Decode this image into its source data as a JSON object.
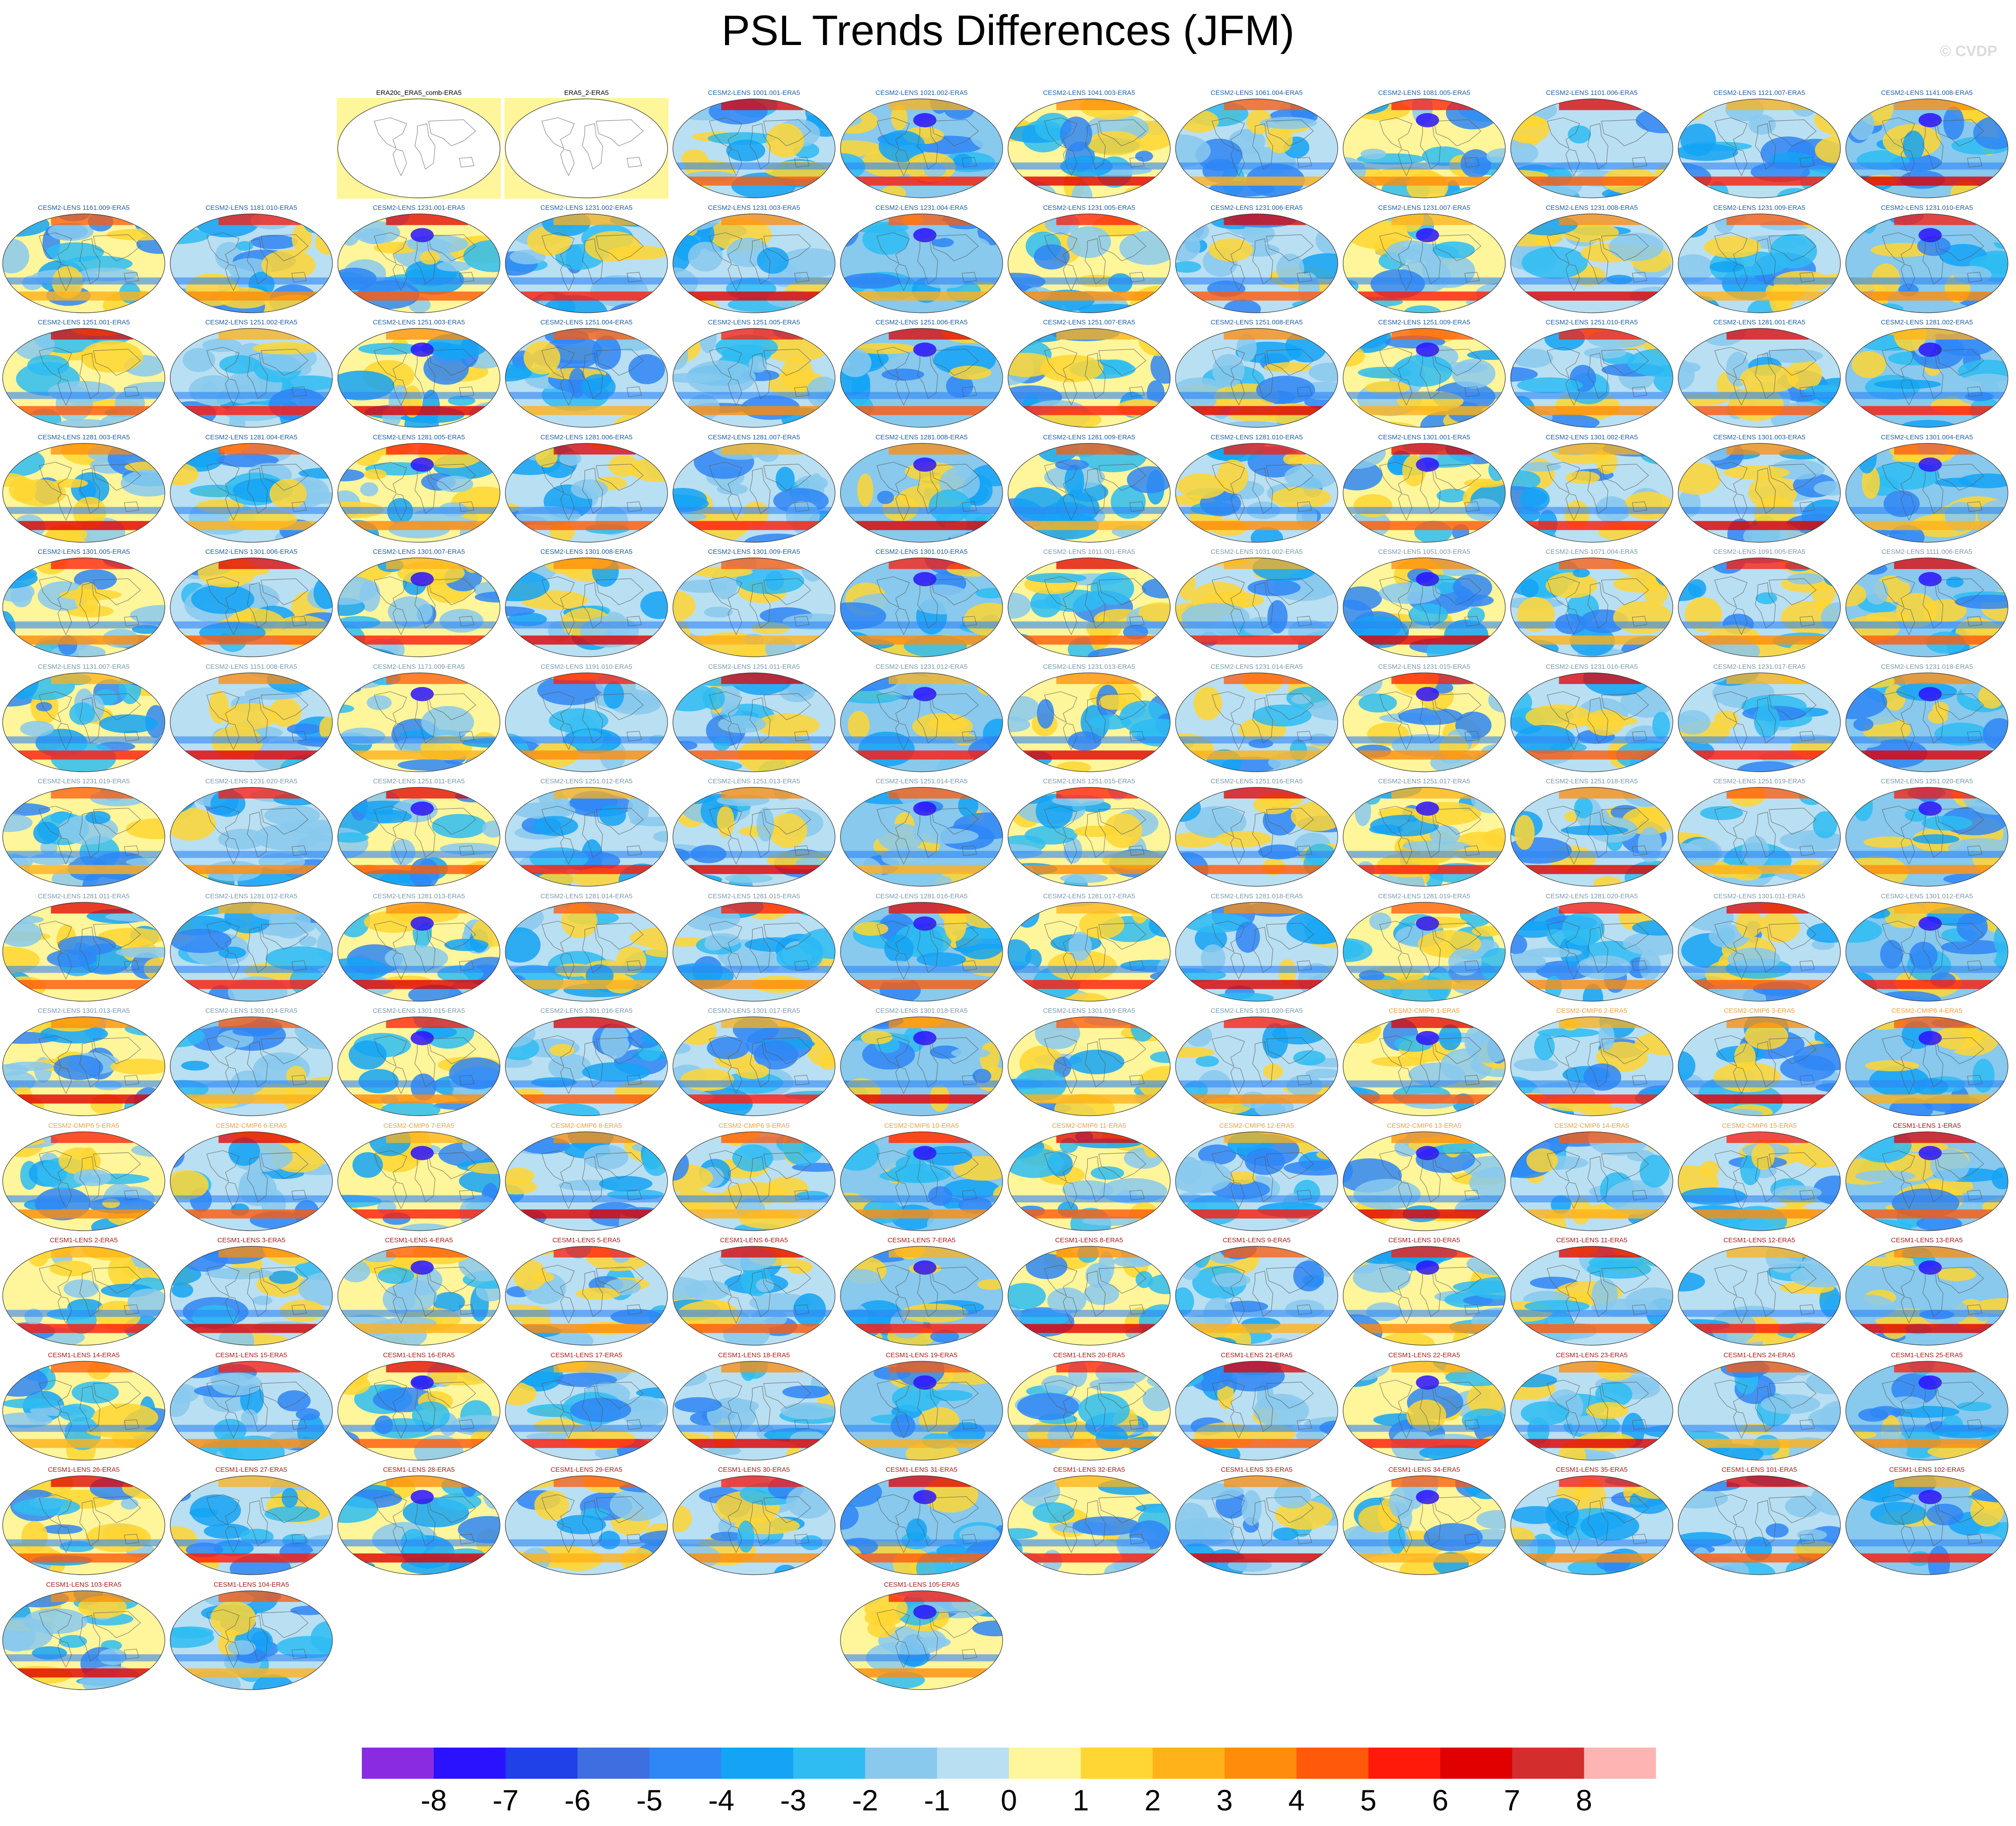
{
  "title": "PSL Trends Differences (JFM)",
  "watermark": "© CVDP",
  "colorbar": {
    "levels": [
      "-8",
      "-7",
      "-6",
      "-5",
      "-4",
      "-3",
      "-2",
      "-1",
      "0",
      "1",
      "2",
      "3",
      "4",
      "5",
      "6",
      "7",
      "8"
    ],
    "colors": [
      "#8a2be2",
      "#2b12ff",
      "#2040e8",
      "#3f6ee0",
      "#2f86f5",
      "#14a3f5",
      "#2ebcf2",
      "#88c9ed",
      "#b9dff2",
      "#fff59a",
      "#ffd633",
      "#ffb21a",
      "#ff8c0a",
      "#ff5a0a",
      "#ff1a0a",
      "#e00000",
      "#d32d2d",
      "#ffb4b4"
    ]
  },
  "panels": [
    {
      "label": "ERA20c_ERA5_comb-ERA5",
      "color": "#000000",
      "type": "blank"
    },
    {
      "label": "ERA5_2-ERA5",
      "color": "#000000",
      "type": "blank"
    },
    {
      "label": "CESM2-LENS 1001.001-ERA5",
      "color": "#1f5fa8"
    },
    {
      "label": "CESM2-LENS 1021.002-ERA5",
      "color": "#1f5fa8"
    },
    {
      "label": "CESM2-LENS 1041.003-ERA5",
      "color": "#1f5fa8"
    },
    {
      "label": "CESM2-LENS 1061.004-ERA5",
      "color": "#1f5fa8"
    },
    {
      "label": "CESM2-LENS 1081.005-ERA5",
      "color": "#1f5fa8"
    },
    {
      "label": "CESM2-LENS 1101.006-ERA5",
      "color": "#1f5fa8"
    },
    {
      "label": "CESM2-LENS 1121.007-ERA5",
      "color": "#1f5fa8"
    },
    {
      "label": "CESM2-LENS 1141.008-ERA5",
      "color": "#1f5fa8"
    },
    {
      "label": "CESM2-LENS 1161.009-ERA5",
      "color": "#1f5fa8"
    },
    {
      "label": "CESM2-LENS 1181.010-ERA5",
      "color": "#1f5fa8"
    },
    {
      "label": "CESM2-LENS 1231.001-ERA5",
      "color": "#1f5fa8"
    },
    {
      "label": "CESM2-LENS 1231.002-ERA5",
      "color": "#1f5fa8"
    },
    {
      "label": "CESM2-LENS 1231.003-ERA5",
      "color": "#1f5fa8"
    },
    {
      "label": "CESM2-LENS 1231.004-ERA5",
      "color": "#1f5fa8"
    },
    {
      "label": "CESM2-LENS 1231.005-ERA5",
      "color": "#1f5fa8"
    },
    {
      "label": "CESM2-LENS 1231.006-ERA5",
      "color": "#1f5fa8"
    },
    {
      "label": "CESM2-LENS 1231.007-ERA5",
      "color": "#1f5fa8"
    },
    {
      "label": "CESM2-LENS 1231.008-ERA5",
      "color": "#1f5fa8"
    },
    {
      "label": "CESM2-LENS 1231.009-ERA5",
      "color": "#1f5fa8"
    },
    {
      "label": "CESM2-LENS 1231.010-ERA5",
      "color": "#1f5fa8"
    },
    {
      "label": "CESM2-LENS 1251.001-ERA5",
      "color": "#1f5fa8"
    },
    {
      "label": "CESM2-LENS 1251.002-ERA5",
      "color": "#1f5fa8"
    },
    {
      "label": "CESM2-LENS 1251.003-ERA5",
      "color": "#1f5fa8"
    },
    {
      "label": "CESM2-LENS 1251.004-ERA5",
      "color": "#1f5fa8"
    },
    {
      "label": "CESM2-LENS 1251.005-ERA5",
      "color": "#1f5fa8"
    },
    {
      "label": "CESM2-LENS 1251.006-ERA5",
      "color": "#1f5fa8"
    },
    {
      "label": "CESM2-LENS 1251.007-ERA5",
      "color": "#1f5fa8"
    },
    {
      "label": "CESM2-LENS 1251.008-ERA5",
      "color": "#1f5fa8"
    },
    {
      "label": "CESM2-LENS 1251.009-ERA5",
      "color": "#1f5fa8"
    },
    {
      "label": "CESM2-LENS 1251.010-ERA5",
      "color": "#1f5fa8"
    },
    {
      "label": "CESM2-LENS 1281.001-ERA5",
      "color": "#1f5fa8"
    },
    {
      "label": "CESM2-LENS 1281.002-ERA5",
      "color": "#1f5fa8"
    },
    {
      "label": "CESM2-LENS 1281.003-ERA5",
      "color": "#1f5fa8"
    },
    {
      "label": "CESM2-LENS 1281.004-ERA5",
      "color": "#1f5fa8"
    },
    {
      "label": "CESM2-LENS 1281.005-ERA5",
      "color": "#1f5fa8"
    },
    {
      "label": "CESM2-LENS 1281.006-ERA5",
      "color": "#1f5fa8"
    },
    {
      "label": "CESM2-LENS 1281.007-ERA5",
      "color": "#1f5fa8"
    },
    {
      "label": "CESM2-LENS 1281.008-ERA5",
      "color": "#1f5fa8"
    },
    {
      "label": "CESM2-LENS 1281.009-ERA5",
      "color": "#1f5fa8"
    },
    {
      "label": "CESM2-LENS 1281.010-ERA5",
      "color": "#1f5fa8"
    },
    {
      "label": "CESM2-LENS 1301.001-ERA5",
      "color": "#1f5fa8"
    },
    {
      "label": "CESM2-LENS 1301.002-ERA5",
      "color": "#1f5fa8"
    },
    {
      "label": "CESM2-LENS 1301.003-ERA5",
      "color": "#1f5fa8"
    },
    {
      "label": "CESM2-LENS 1301.004-ERA5",
      "color": "#1f5fa8"
    },
    {
      "label": "CESM2-LENS 1301.005-ERA5",
      "color": "#1f5fa8"
    },
    {
      "label": "CESM2-LENS 1301.006-ERA5",
      "color": "#1f5fa8"
    },
    {
      "label": "CESM2-LENS 1301.007-ERA5",
      "color": "#1f5fa8"
    },
    {
      "label": "CESM2-LENS 1301.008-ERA5",
      "color": "#1f5fa8"
    },
    {
      "label": "CESM2-LENS 1301.009-ERA5",
      "color": "#1f5fa8"
    },
    {
      "label": "CESM2-LENS 1301.010-ERA5",
      "color": "#1f5fa8"
    },
    {
      "label": "CESM2-LENS 1011.001-ERA5",
      "color": "#7a9ab0"
    },
    {
      "label": "CESM2-LENS 1031.002-ERA5",
      "color": "#7a9ab0"
    },
    {
      "label": "CESM2-LENS 1051.003-ERA5",
      "color": "#7a9ab0"
    },
    {
      "label": "CESM2-LENS 1071.004-ERA5",
      "color": "#7a9ab0"
    },
    {
      "label": "CESM2-LENS 1091.005-ERA5",
      "color": "#7a9ab0"
    },
    {
      "label": "CESM2-LENS 1111.006-ERA5",
      "color": "#7a9ab0"
    },
    {
      "label": "CESM2-LENS 1131.007-ERA5",
      "color": "#7a9ab0"
    },
    {
      "label": "CESM2-LENS 1151.008-ERA5",
      "color": "#7a9ab0"
    },
    {
      "label": "CESM2-LENS 1171.009-ERA5",
      "color": "#7a9ab0"
    },
    {
      "label": "CESM2-LENS 1191.010-ERA5",
      "color": "#7a9ab0"
    },
    {
      "label": "CESM2-LENS 1251.011-ERA5",
      "color": "#7a9ab0"
    },
    {
      "label": "CESM2-LENS 1231.012-ERA5",
      "color": "#7a9ab0"
    },
    {
      "label": "CESM2-LENS 1231.013-ERA5",
      "color": "#7a9ab0"
    },
    {
      "label": "CESM2-LENS 1231.014-ERA5",
      "color": "#7a9ab0"
    },
    {
      "label": "CESM2-LENS 1231.015-ERA5",
      "color": "#7a9ab0"
    },
    {
      "label": "CESM2-LENS 1231.016-ERA5",
      "color": "#7a9ab0"
    },
    {
      "label": "CESM2-LENS 1231.017-ERA5",
      "color": "#7a9ab0"
    },
    {
      "label": "CESM2-LENS 1231.018-ERA5",
      "color": "#7a9ab0"
    },
    {
      "label": "CESM2-LENS 1231.019-ERA5",
      "color": "#7a9ab0"
    },
    {
      "label": "CESM2-LENS 1231.020-ERA5",
      "color": "#7a9ab0"
    },
    {
      "label": "CESM2-LENS 1251.011-ERA5",
      "color": "#7a9ab0"
    },
    {
      "label": "CESM2-LENS 1251.012-ERA5",
      "color": "#7a9ab0"
    },
    {
      "label": "CESM2-LENS 1251.013-ERA5",
      "color": "#7a9ab0"
    },
    {
      "label": "CESM2-LENS 1251.014-ERA5",
      "color": "#7a9ab0"
    },
    {
      "label": "CESM2-LENS 1251.015-ERA5",
      "color": "#7a9ab0"
    },
    {
      "label": "CESM2-LENS 1251.016-ERA5",
      "color": "#7a9ab0"
    },
    {
      "label": "CESM2-LENS 1251.017-ERA5",
      "color": "#7a9ab0"
    },
    {
      "label": "CESM2-LENS 1251.018-ERA5",
      "color": "#7a9ab0"
    },
    {
      "label": "CESM2-LENS 1251.019-ERA5",
      "color": "#7a9ab0"
    },
    {
      "label": "CESM2-LENS 1251.020-ERA5",
      "color": "#7a9ab0"
    },
    {
      "label": "CESM2-LENS 1281.011-ERA5",
      "color": "#7a9ab0"
    },
    {
      "label": "CESM2-LENS 1281.012-ERA5",
      "color": "#7a9ab0"
    },
    {
      "label": "CESM2-LENS 1281.013-ERA5",
      "color": "#7a9ab0"
    },
    {
      "label": "CESM2-LENS 1281.014-ERA5",
      "color": "#7a9ab0"
    },
    {
      "label": "CESM2-LENS 1281.015-ERA5",
      "color": "#7a9ab0"
    },
    {
      "label": "CESM2-LENS 1281.016-ERA5",
      "color": "#7a9ab0"
    },
    {
      "label": "CESM2-LENS 1281.017-ERA5",
      "color": "#7a9ab0"
    },
    {
      "label": "CESM2-LENS 1281.018-ERA5",
      "color": "#7a9ab0"
    },
    {
      "label": "CESM2-LENS 1281.019-ERA5",
      "color": "#7a9ab0"
    },
    {
      "label": "CESM2-LENS 1281.020-ERA5",
      "color": "#7a9ab0"
    },
    {
      "label": "CESM2-LENS 1301.011-ERA5",
      "color": "#7a9ab0"
    },
    {
      "label": "CESM2-LENS 1301.012-ERA5",
      "color": "#7a9ab0"
    },
    {
      "label": "CESM2-LENS 1301.013-ERA5",
      "color": "#7a9ab0"
    },
    {
      "label": "CESM2-LENS 1301.014-ERA5",
      "color": "#7a9ab0"
    },
    {
      "label": "CESM2-LENS 1301.015-ERA5",
      "color": "#7a9ab0"
    },
    {
      "label": "CESM2-LENS 1301.016-ERA5",
      "color": "#7a9ab0"
    },
    {
      "label": "CESM2-LENS 1301.017-ERA5",
      "color": "#7a9ab0"
    },
    {
      "label": "CESM2-LENS 1301.018-ERA5",
      "color": "#7a9ab0"
    },
    {
      "label": "CESM2-LENS 1301.019-ERA5",
      "color": "#7a9ab0"
    },
    {
      "label": "CESM2-LENS 1301.020-ERA5",
      "color": "#7a9ab0"
    },
    {
      "label": "CESM2-CMIP6 1-ERA5",
      "color": "#f0a040"
    },
    {
      "label": "CESM2-CMIP6 2-ERA5",
      "color": "#f0a040"
    },
    {
      "label": "CESM2-CMIP6 3-ERA5",
      "color": "#f0a040"
    },
    {
      "label": "CESM2-CMIP6 4-ERA5",
      "color": "#f0a040"
    },
    {
      "label": "CESM2-CMIP6 5-ERA5",
      "color": "#f0a040"
    },
    {
      "label": "CESM2-CMIP6 6-ERA5",
      "color": "#f0a040"
    },
    {
      "label": "CESM2-CMIP6 7-ERA5",
      "color": "#f0a040"
    },
    {
      "label": "CESM2-CMIP6 8-ERA5",
      "color": "#f0a040"
    },
    {
      "label": "CESM2-CMIP6 9-ERA5",
      "color": "#f0a040"
    },
    {
      "label": "CESM2-CMIP6 10-ERA5",
      "color": "#f0a040"
    },
    {
      "label": "CESM2-CMIP6 11-ERA5",
      "color": "#f0a040"
    },
    {
      "label": "CESM2-CMIP6 12-ERA5",
      "color": "#f0a040"
    },
    {
      "label": "CESM2-CMIP6 13-ERA5",
      "color": "#f0a040"
    },
    {
      "label": "CESM2-CMIP6 14-ERA5",
      "color": "#f0a040"
    },
    {
      "label": "CESM2-CMIP6 15-ERA5",
      "color": "#f0a040"
    },
    {
      "label": "CESM1-LENS 1-ERA5",
      "color": "#b01818"
    },
    {
      "label": "CESM1-LENS 2-ERA5",
      "color": "#b01818"
    },
    {
      "label": "CESM1-LENS 3-ERA5",
      "color": "#b01818"
    },
    {
      "label": "CESM1-LENS 4-ERA5",
      "color": "#b01818"
    },
    {
      "label": "CESM1-LENS 5-ERA5",
      "color": "#b01818"
    },
    {
      "label": "CESM1-LENS 6-ERA5",
      "color": "#b01818"
    },
    {
      "label": "CESM1-LENS 7-ERA5",
      "color": "#b01818"
    },
    {
      "label": "CESM1-LENS 8-ERA5",
      "color": "#b01818"
    },
    {
      "label": "CESM1-LENS 9-ERA5",
      "color": "#b01818"
    },
    {
      "label": "CESM1-LENS 10-ERA5",
      "color": "#b01818"
    },
    {
      "label": "CESM1-LENS 11-ERA5",
      "color": "#b01818"
    },
    {
      "label": "CESM1-LENS 12-ERA5",
      "color": "#b01818"
    },
    {
      "label": "CESM1-LENS 13-ERA5",
      "color": "#b01818"
    },
    {
      "label": "CESM1-LENS 14-ERA5",
      "color": "#b01818"
    },
    {
      "label": "CESM1-LENS 15-ERA5",
      "color": "#b01818"
    },
    {
      "label": "CESM1-LENS 16-ERA5",
      "color": "#b01818"
    },
    {
      "label": "CESM1-LENS 17-ERA5",
      "color": "#b01818"
    },
    {
      "label": "CESM1-LENS 18-ERA5",
      "color": "#b01818"
    },
    {
      "label": "CESM1-LENS 19-ERA5",
      "color": "#b01818"
    },
    {
      "label": "CESM1-LENS 20-ERA5",
      "color": "#b01818"
    },
    {
      "label": "CESM1-LENS 21-ERA5",
      "color": "#b01818"
    },
    {
      "label": "CESM1-LENS 22-ERA5",
      "color": "#b01818"
    },
    {
      "label": "CESM1-LENS 23-ERA5",
      "color": "#b01818"
    },
    {
      "label": "CESM1-LENS 24-ERA5",
      "color": "#b01818"
    },
    {
      "label": "CESM1-LENS 25-ERA5",
      "color": "#b01818"
    },
    {
      "label": "CESM1-LENS 26-ERA5",
      "color": "#b01818"
    },
    {
      "label": "CESM1-LENS 27-ERA5",
      "color": "#b01818"
    },
    {
      "label": "CESM1-LENS 28-ERA5",
      "color": "#b01818"
    },
    {
      "label": "CESM1-LENS 29-ERA5",
      "color": "#b01818"
    },
    {
      "label": "CESM1-LENS 30-ERA5",
      "color": "#b01818"
    },
    {
      "label": "CESM1-LENS 31-ERA5",
      "color": "#b01818"
    },
    {
      "label": "CESM1-LENS 32-ERA5",
      "color": "#b01818"
    },
    {
      "label": "CESM1-LENS 33-ERA5",
      "color": "#b01818"
    },
    {
      "label": "CESM1-LENS 34-ERA5",
      "color": "#b01818"
    },
    {
      "label": "CESM1-LENS 35-ERA5",
      "color": "#b01818"
    },
    {
      "label": "CESM1-LENS 101-ERA5",
      "color": "#b01818"
    },
    {
      "label": "CESM1-LENS 102-ERA5",
      "color": "#b01818"
    },
    {
      "label": "CESM1-LENS 103-ERA5",
      "color": "#b01818"
    },
    {
      "label": "CESM1-LENS 104-ERA5",
      "color": "#b01818"
    },
    {
      "label": "CESM1-LENS 105-ERA5",
      "color": "#b01818"
    }
  ]
}
